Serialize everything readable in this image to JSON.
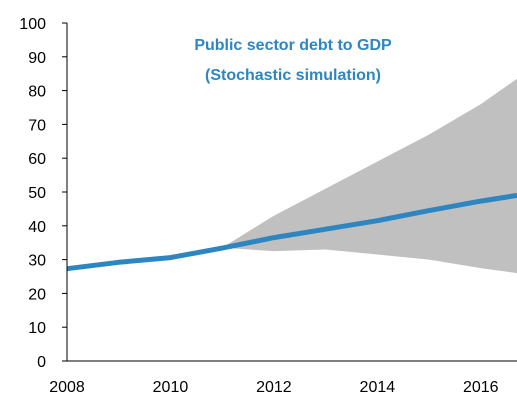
{
  "chart_data": {
    "type": "area",
    "title_lines": [
      "Public sector debt to GDP",
      "(Stochastic simulation)"
    ],
    "xlabel": "",
    "ylabel": "",
    "xlim": [
      2008,
      2016.7
    ],
    "ylim": [
      0,
      100
    ],
    "x_ticks": [
      2008,
      2010,
      2012,
      2014,
      2016
    ],
    "y_ticks": [
      0,
      10,
      20,
      30,
      40,
      50,
      60,
      70,
      80,
      90,
      100
    ],
    "grid": false,
    "legend": "none",
    "fan_band": {
      "x": [
        2011,
        2012,
        2013,
        2014,
        2015,
        2016,
        2016.7
      ],
      "upper": [
        33.5,
        43,
        51,
        59,
        67,
        76,
        83.5
      ],
      "lower": [
        33.5,
        32.5,
        33,
        31.5,
        30,
        27.5,
        26
      ]
    },
    "series": [
      {
        "x": [
          2008,
          2009,
          2010,
          2011,
          2012,
          2013,
          2014,
          2015,
          2016,
          2016.7
        ],
        "values": [
          27.3,
          29.2,
          30.6,
          33.4,
          36.5,
          39,
          41.5,
          44.5,
          47.3,
          49
        ]
      }
    ],
    "colors": {
      "line": "#2e86c1",
      "band": "#c0c0c0",
      "title": "#2e86c1",
      "axis": "#000000"
    }
  }
}
